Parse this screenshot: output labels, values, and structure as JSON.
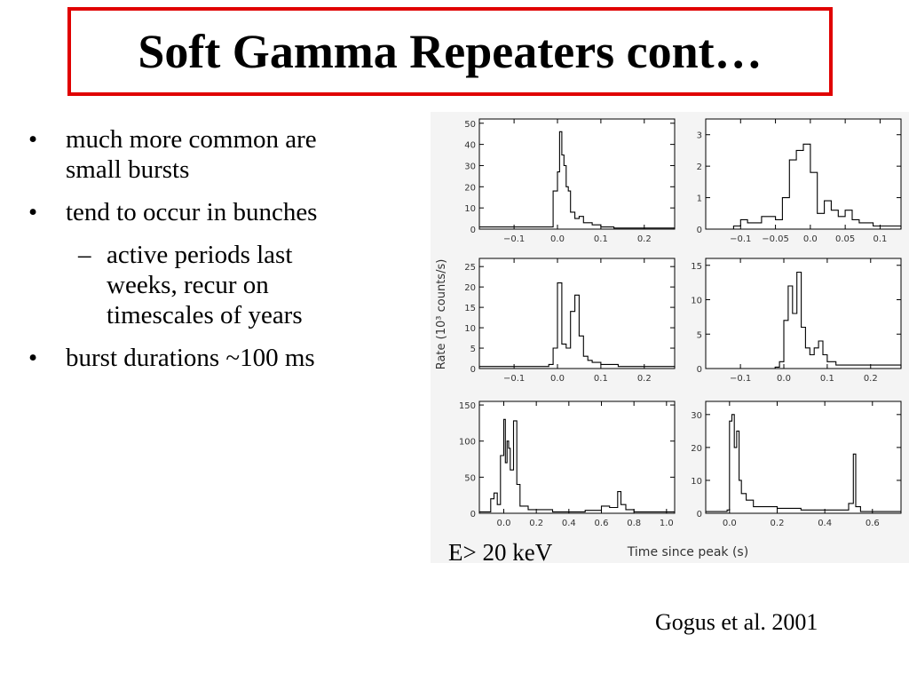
{
  "slide": {
    "title": "Soft Gamma Repeaters cont…",
    "bullets": [
      {
        "level": 1,
        "marker": "•",
        "text_lines": [
          "much more common are",
          "small bursts"
        ]
      },
      {
        "level": 1,
        "marker": "•",
        "text_lines": [
          "tend to occur in bunches"
        ]
      },
      {
        "level": 2,
        "marker": "–",
        "text_lines": [
          "active periods last",
          "weeks, recur on",
          "timescales of years"
        ]
      },
      {
        "level": 1,
        "marker": "•",
        "text_lines": [
          "burst durations ~100 ms"
        ]
      }
    ],
    "energy_label": "E> 20 keV",
    "citation": "Gogus et al. 2001",
    "colors": {
      "title_border": "#e00000",
      "figure_background": "#f4f4f4",
      "plot_line": "#000000"
    }
  },
  "chart_data": [
    {
      "type": "line",
      "shared_ylabel": "Rate (10³ counts/s)",
      "shared_xlabel": "Time since peak (s)",
      "xlim": [
        -0.18,
        0.27
      ],
      "ylim": [
        0,
        52
      ],
      "xticks": [
        -0.1,
        0.0,
        0.1,
        0.2
      ],
      "xtick_labels": [
        "−0.1",
        "0.0",
        "0.1",
        "0.2"
      ],
      "yticks": [
        0,
        10,
        20,
        30,
        40,
        50
      ],
      "ytick_labels": [
        "0",
        "10",
        "20",
        "30",
        "40",
        "50"
      ],
      "x": [
        -0.18,
        -0.02,
        -0.01,
        0.0,
        0.005,
        0.01,
        0.015,
        0.02,
        0.025,
        0.03,
        0.04,
        0.05,
        0.06,
        0.08,
        0.1,
        0.13,
        0.27
      ],
      "y": [
        1,
        1,
        18,
        27,
        46,
        35,
        30,
        20,
        18,
        8,
        5,
        6,
        3,
        2,
        1,
        0.5,
        0.5
      ]
    },
    {
      "type": "line",
      "xlim": [
        -0.15,
        0.13
      ],
      "ylim": [
        0,
        3.5
      ],
      "xticks": [
        -0.1,
        -0.05,
        0.0,
        0.05,
        0.1
      ],
      "xtick_labels": [
        "−0.1",
        "−0.05",
        "0.0",
        "0.05",
        "0.1"
      ],
      "yticks": [
        0,
        1,
        2,
        3
      ],
      "ytick_labels": [
        "0",
        "1",
        "2",
        "3"
      ],
      "x": [
        -0.15,
        -0.11,
        -0.1,
        -0.09,
        -0.07,
        -0.05,
        -0.04,
        -0.03,
        -0.02,
        -0.01,
        0.0,
        0.01,
        0.02,
        0.03,
        0.04,
        0.05,
        0.06,
        0.07,
        0.09,
        0.13
      ],
      "y": [
        0,
        0.1,
        0.3,
        0.2,
        0.4,
        0.3,
        1.0,
        2.2,
        2.5,
        2.7,
        1.8,
        0.5,
        0.9,
        0.6,
        0.4,
        0.6,
        0.3,
        0.2,
        0.1,
        0
      ]
    },
    {
      "type": "line",
      "xlim": [
        -0.18,
        0.27
      ],
      "ylim": [
        0,
        27
      ],
      "xticks": [
        -0.1,
        0.0,
        0.1,
        0.2
      ],
      "xtick_labels": [
        "−0.1",
        "0.0",
        "0.1",
        "0.2"
      ],
      "yticks": [
        0,
        5,
        10,
        15,
        20,
        25
      ],
      "ytick_labels": [
        "0",
        "5",
        "10",
        "15",
        "20",
        "25"
      ],
      "x": [
        -0.18,
        -0.02,
        -0.01,
        0.0,
        0.01,
        0.02,
        0.03,
        0.04,
        0.05,
        0.06,
        0.07,
        0.08,
        0.1,
        0.14,
        0.27
      ],
      "y": [
        0.5,
        1,
        5,
        21,
        6,
        5,
        14,
        18,
        8,
        3,
        2,
        1.5,
        1,
        0.5,
        0.3
      ]
    },
    {
      "type": "line",
      "xlim": [
        -0.18,
        0.27
      ],
      "ylim": [
        0,
        16
      ],
      "xticks": [
        -0.1,
        0.0,
        0.1,
        0.2
      ],
      "xtick_labels": [
        "−0.1",
        "0.0",
        "0.1",
        "0.2"
      ],
      "yticks": [
        0,
        5,
        10,
        15
      ],
      "ytick_labels": [
        "0",
        "5",
        "10",
        "15"
      ],
      "x": [
        -0.18,
        -0.02,
        -0.01,
        0.0,
        0.01,
        0.02,
        0.03,
        0.04,
        0.05,
        0.06,
        0.07,
        0.08,
        0.09,
        0.1,
        0.12,
        0.27
      ],
      "y": [
        0,
        0.2,
        1,
        7,
        12,
        8,
        14,
        6,
        3,
        2,
        3,
        4,
        2,
        1,
        0.5,
        0
      ]
    },
    {
      "type": "line",
      "xlim": [
        -0.15,
        1.05
      ],
      "ylim": [
        0,
        155
      ],
      "xticks": [
        0.0,
        0.2,
        0.4,
        0.6,
        0.8,
        1.0
      ],
      "xtick_labels": [
        "0.0",
        "0.2",
        "0.4",
        "0.6",
        "0.8",
        "1.0"
      ],
      "yticks": [
        0,
        50,
        100,
        150
      ],
      "ytick_labels": [
        "0",
        "50",
        "100",
        "150"
      ],
      "x": [
        -0.15,
        -0.08,
        -0.06,
        -0.04,
        -0.02,
        0.0,
        0.01,
        0.02,
        0.03,
        0.04,
        0.06,
        0.08,
        0.1,
        0.15,
        0.3,
        0.5,
        0.6,
        0.65,
        0.7,
        0.72,
        0.75,
        0.8,
        1.05
      ],
      "y": [
        2,
        20,
        28,
        12,
        80,
        130,
        70,
        100,
        90,
        60,
        128,
        40,
        10,
        5,
        2,
        4,
        10,
        8,
        30,
        12,
        5,
        2,
        2
      ]
    },
    {
      "type": "line",
      "xlim": [
        -0.1,
        0.72
      ],
      "ylim": [
        0,
        34
      ],
      "xticks": [
        0.0,
        0.2,
        0.4,
        0.6
      ],
      "xtick_labels": [
        "0.0",
        "0.2",
        "0.4",
        "0.6"
      ],
      "yticks": [
        0,
        10,
        20,
        30
      ],
      "ytick_labels": [
        "0",
        "10",
        "20",
        "30"
      ],
      "x": [
        -0.1,
        -0.01,
        0.0,
        0.01,
        0.02,
        0.03,
        0.04,
        0.05,
        0.07,
        0.1,
        0.2,
        0.3,
        0.45,
        0.5,
        0.52,
        0.53,
        0.55,
        0.72
      ],
      "y": [
        0.5,
        1,
        28,
        30,
        20,
        25,
        10,
        6,
        4,
        2,
        1.5,
        1,
        1,
        3,
        18,
        2,
        0.5,
        0.5
      ]
    }
  ]
}
